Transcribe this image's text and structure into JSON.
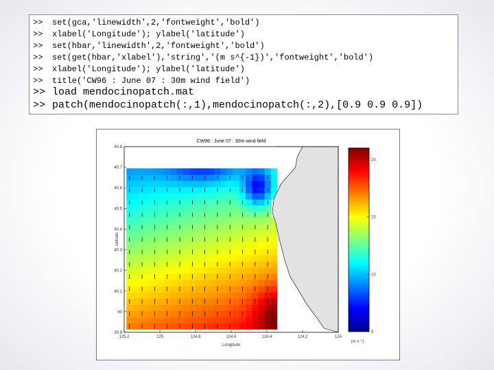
{
  "console": {
    "prompt": ">>",
    "lines": [
      "set(gca,'linewidth',2,'fontweight','bold')",
      "xlabel('Longitude'); ylabel('latitude')",
      "set(hbar,'linewidth',2,'fontweight','bold')",
      "set(get(hbar,'xlabel'),'string','(m s^{-1})','fontweight','bold')",
      "xlabel('Longitude'); ylabel('latitude')",
      "title('CW96 : June 07 : 30m wind field')",
      "load mendocinopatch.mat",
      "patch(mendocinopatch(:,1),mendocinopatch(:,2),[0.9 0.9 0.9])"
    ]
  },
  "colors": {
    "land": "#e2e2e2",
    "grid_cmap": "jet",
    "arrow": "#000000"
  },
  "chart_data": {
    "type": "heatmap",
    "title": "CW96 : June 07 : 30m wind field",
    "xlabel": "Longitude",
    "ylabel": "latitude",
    "xlim": [
      -125.2,
      -124.0
    ],
    "ylim": [
      39.9,
      40.8
    ],
    "x_ticks": [
      -125.2,
      -125.0,
      -124.8,
      -124.6,
      -124.4,
      -124.2,
      -124.0
    ],
    "x_ticklabels": [
      "125.2",
      "125",
      "124.8",
      "124.6",
      "124.4",
      "124.2",
      "124"
    ],
    "y_ticks": [
      39.9,
      40.0,
      40.1,
      40.2,
      40.3,
      40.4,
      40.5,
      40.6,
      40.7,
      40.8
    ],
    "y_ticklabels": [
      "39.9",
      "40",
      "40.1",
      "40.2",
      "40.3",
      "40.4",
      "40.5",
      "40.6",
      "40.7",
      "40.8"
    ],
    "colorbar": {
      "label": "(m s⁻¹)",
      "range": [
        5,
        21
      ],
      "ticks": [
        5,
        10,
        15,
        20
      ],
      "ticklabels": [
        "5",
        "10",
        "15",
        "20"
      ]
    },
    "grid": {
      "lon_start": -125.17,
      "lon_step": 0.0352,
      "ncols": 24,
      "lat_start": 39.93,
      "lat_step": 0.03,
      "nrows": 26
    },
    "land_polygon": [
      [
        -124.35,
        40.8
      ],
      [
        -124.2,
        40.8
      ],
      [
        -124.23,
        40.75
      ],
      [
        -124.24,
        40.7
      ],
      [
        -124.28,
        40.66
      ],
      [
        -124.32,
        40.62
      ],
      [
        -124.36,
        40.55
      ],
      [
        -124.37,
        40.48
      ],
      [
        -124.35,
        40.43
      ],
      [
        -124.33,
        40.35
      ],
      [
        -124.3,
        40.25
      ],
      [
        -124.27,
        40.17
      ],
      [
        -124.22,
        40.1
      ],
      [
        -124.18,
        40.04
      ],
      [
        -124.12,
        39.97
      ],
      [
        -124.08,
        39.92
      ],
      [
        -124.0,
        39.9
      ],
      [
        -124.0,
        40.8
      ]
    ]
  }
}
